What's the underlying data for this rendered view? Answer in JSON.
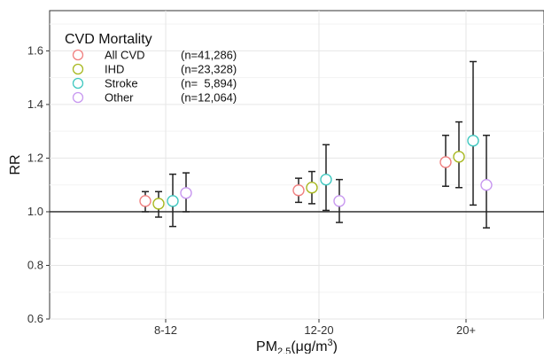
{
  "chart_data": {
    "type": "scatter",
    "title": "",
    "xlabel": "PM",
    "xlabel_sub": "2.5",
    "xlabel_unit": "(μg/m",
    "xlabel_sup": "3",
    "xlabel_end": ")",
    "ylabel": "RR",
    "categories": [
      "8-12",
      "12-20",
      "20+"
    ],
    "ylim": [
      0.6,
      1.75
    ],
    "yticks": [
      "0.6",
      "0.8",
      "1.0",
      "1.2",
      "1.4",
      "1.6"
    ],
    "reference_line": 1.0,
    "grid": true,
    "legend": {
      "title": "CVD Mortality",
      "placement": "top-left"
    },
    "series": [
      {
        "name": "All CVD",
        "n_label": "(n=41,286)",
        "color": "#f08080",
        "points": [
          {
            "x": "8-12",
            "y": 1.04,
            "lo": 1.0,
            "hi": 1.075
          },
          {
            "x": "12-20",
            "y": 1.08,
            "lo": 1.035,
            "hi": 1.125
          },
          {
            "x": "20+",
            "y": 1.185,
            "lo": 1.095,
            "hi": 1.285
          }
        ]
      },
      {
        "name": "IHD",
        "n_label": "(n=23,328)",
        "color": "#a8b820",
        "points": [
          {
            "x": "8-12",
            "y": 1.03,
            "lo": 0.98,
            "hi": 1.075
          },
          {
            "x": "12-20",
            "y": 1.09,
            "lo": 1.03,
            "hi": 1.15
          },
          {
            "x": "20+",
            "y": 1.205,
            "lo": 1.09,
            "hi": 1.335
          }
        ]
      },
      {
        "name": "Stroke",
        "n_label": "(n=  5,894)",
        "color": "#40c8c0",
        "points": [
          {
            "x": "8-12",
            "y": 1.04,
            "lo": 0.945,
            "hi": 1.14
          },
          {
            "x": "12-20",
            "y": 1.12,
            "lo": 1.005,
            "hi": 1.25
          },
          {
            "x": "20+",
            "y": 1.265,
            "lo": 1.025,
            "hi": 1.56
          }
        ]
      },
      {
        "name": "Other",
        "n_label": "(n=12,064)",
        "color": "#c898f0",
        "points": [
          {
            "x": "8-12",
            "y": 1.07,
            "lo": 1.0,
            "hi": 1.145
          },
          {
            "x": "12-20",
            "y": 1.04,
            "lo": 0.96,
            "hi": 1.12
          },
          {
            "x": "20+",
            "y": 1.1,
            "lo": 0.94,
            "hi": 1.285
          }
        ]
      }
    ]
  }
}
